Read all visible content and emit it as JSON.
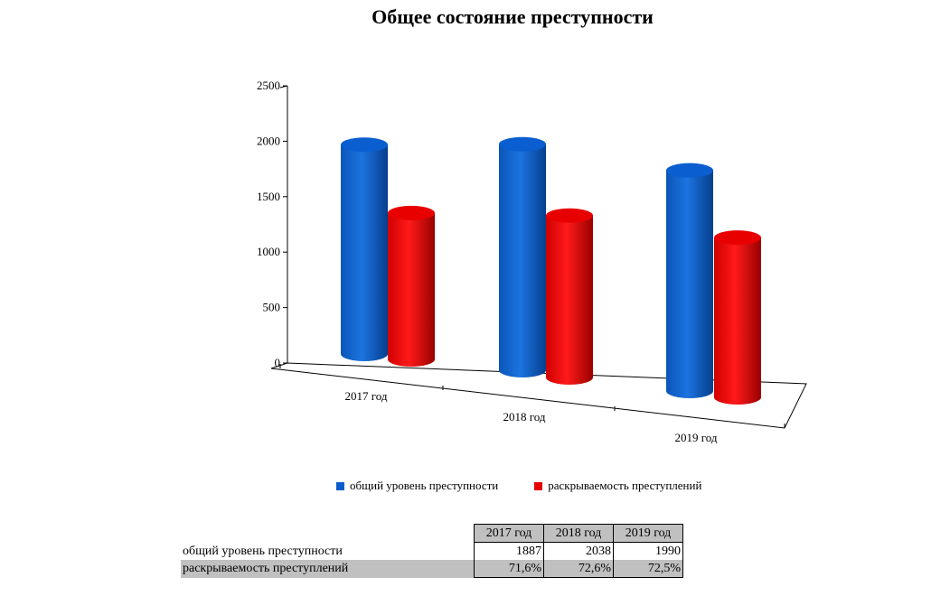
{
  "chart_data": {
    "type": "bar",
    "title": "Общее состояние преступности",
    "categories": [
      "2017 год",
      "2018 год",
      "2019 год"
    ],
    "series": [
      {
        "name": "общий уровень преступности",
        "values": [
          1887,
          2038,
          1990
        ],
        "color": "#0a5cc8"
      },
      {
        "name": "раскрываемость преступлений",
        "values": [
          1320,
          1460,
          1440
        ],
        "color": "#e60000"
      }
    ],
    "ylim": [
      0,
      2500
    ],
    "yticks": [
      0,
      500,
      1000,
      1500,
      2000,
      2500
    ],
    "style": "3d-cylinder",
    "legend_position": "bottom",
    "grid": false
  },
  "table": {
    "headers": [
      "2017 год",
      "2018 год",
      "2019 год"
    ],
    "rows": [
      {
        "label": "общий уровень преступности",
        "values": [
          "1887",
          "2038",
          "1990"
        ]
      },
      {
        "label": "раскрываемость преступлений",
        "values": [
          "71,6%",
          "72,6%",
          "72,5%"
        ]
      }
    ]
  }
}
